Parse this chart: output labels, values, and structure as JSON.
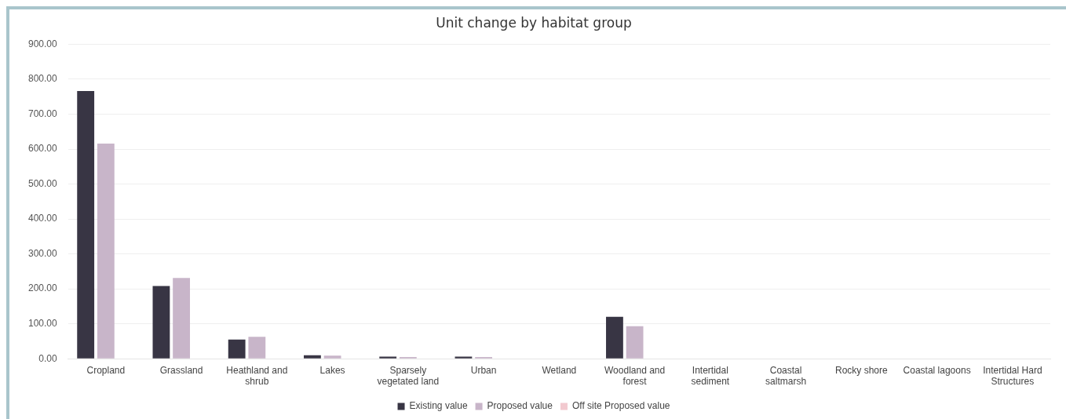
{
  "chart_data": {
    "type": "bar",
    "title": "Unit change by habitat group",
    "categories": [
      "Cropland",
      "Grassland",
      "Heathland and shrub",
      "Lakes",
      "Sparsely vegetated land",
      "Urban",
      "Wetland",
      "Woodland and forest",
      "Intertidal sediment",
      "Coastal saltmarsh",
      "Rocky shore",
      "Coastal lagoons",
      "Intertidal Hard Structures"
    ],
    "series": [
      {
        "name": "Existing value",
        "color": "#383544",
        "values": [
          766,
          208,
          55,
          10,
          6,
          6,
          0,
          120,
          0,
          0,
          0,
          0,
          0
        ]
      },
      {
        "name": "Proposed value",
        "color": "#c8b5c9",
        "values": [
          616,
          231,
          63,
          9,
          5,
          5,
          0,
          93,
          0,
          0,
          0,
          0,
          0
        ]
      },
      {
        "name": "Off site Proposed value",
        "color": "#f2c9cf",
        "values": [
          0,
          0,
          0,
          0,
          0,
          0,
          0,
          0,
          0,
          0,
          0,
          0,
          0
        ]
      }
    ],
    "ylim": [
      0,
      900
    ],
    "yticks": [
      {
        "value": 0,
        "label": "0.00"
      },
      {
        "value": 100,
        "label": "100.00"
      },
      {
        "value": 200,
        "label": "200.00"
      },
      {
        "value": 300,
        "label": "300.00"
      },
      {
        "value": 400,
        "label": "400.00"
      },
      {
        "value": 500,
        "label": "500.00"
      },
      {
        "value": 600,
        "label": "600.00"
      },
      {
        "value": 700,
        "label": "700.00"
      },
      {
        "value": 800,
        "label": "800.00"
      },
      {
        "value": 900,
        "label": "900.00"
      }
    ],
    "grid": "y",
    "legend": "bottom"
  }
}
